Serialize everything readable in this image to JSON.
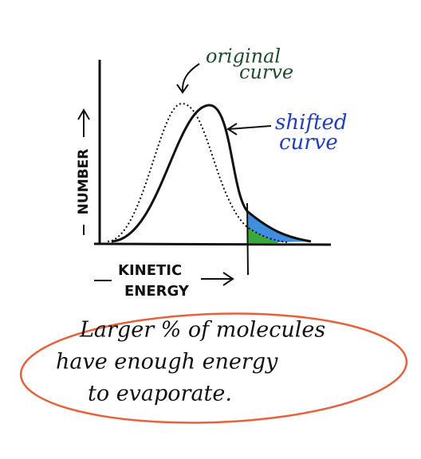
{
  "labels": {
    "original": [
      "original",
      "curve"
    ],
    "shifted": [
      "shifted",
      "curve"
    ],
    "y_axis": "NUMBER",
    "x_axis": [
      "KINETIC",
      "ENERGY"
    ]
  },
  "note": {
    "lines": [
      "Larger % of molecules",
      "have enough energy",
      "to evaporate."
    ]
  }
}
